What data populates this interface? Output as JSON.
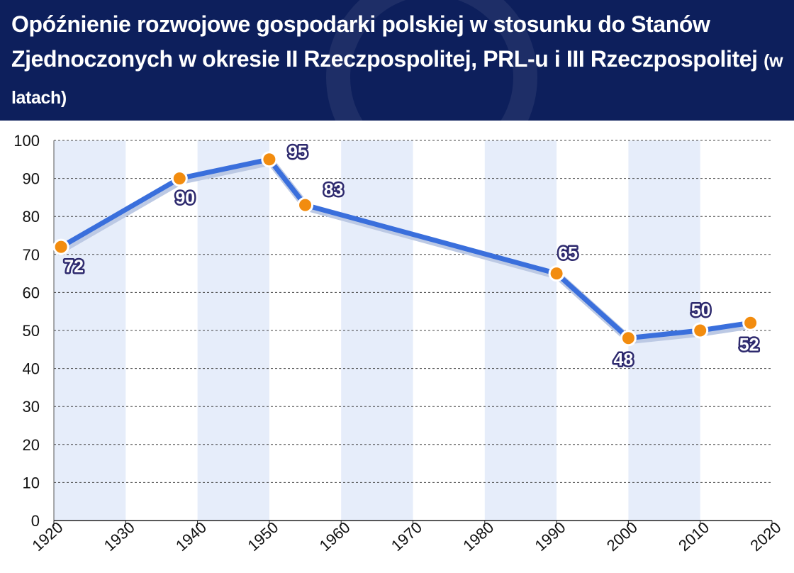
{
  "title": {
    "main": "Opóźnienie rozwojowe gospodarki polskiej w stosunku do Stanów Zjednoczonych w okresie II Rzeczpospolitej, PRL-u i III Rzeczpospolitej",
    "unit": "(w latach)"
  },
  "colors": {
    "header_bg": "#0d1f5c",
    "line": "#3a6fdc",
    "marker": "#f28c0f",
    "band": "#e6edfa",
    "label_outline": "#2e2a6e"
  },
  "chart_data": {
    "type": "line",
    "title": "Opóźnienie rozwojowe gospodarki polskiej w stosunku do Stanów Zjednoczonych w okresie II Rzeczpospolitej, PRL-u i III Rzeczpospolitej (w latach)",
    "xlabel": "",
    "ylabel": "",
    "x": [
      1921,
      1937.5,
      1950,
      1955,
      1990,
      2000,
      2010,
      2017
    ],
    "series": [
      {
        "values": [
          72,
          90,
          95,
          83,
          65,
          48,
          50,
          52
        ]
      }
    ],
    "data_labels": [
      "72",
      "90",
      "95",
      "83",
      "65",
      "48",
      "50",
      "52"
    ],
    "xlim": [
      1920,
      2020
    ],
    "ylim": [
      0,
      100
    ],
    "x_ticks": [
      1920,
      1930,
      1940,
      1950,
      1960,
      1970,
      1980,
      1990,
      2000,
      2010,
      2020
    ],
    "y_ticks": [
      0,
      10,
      20,
      30,
      40,
      50,
      60,
      70,
      80,
      90,
      100
    ],
    "grid": "horizontal dashed",
    "shaded_decades": [
      [
        1920,
        1930
      ],
      [
        1940,
        1950
      ],
      [
        1960,
        1970
      ],
      [
        1980,
        1990
      ],
      [
        2000,
        2010
      ]
    ],
    "legend": "none"
  }
}
